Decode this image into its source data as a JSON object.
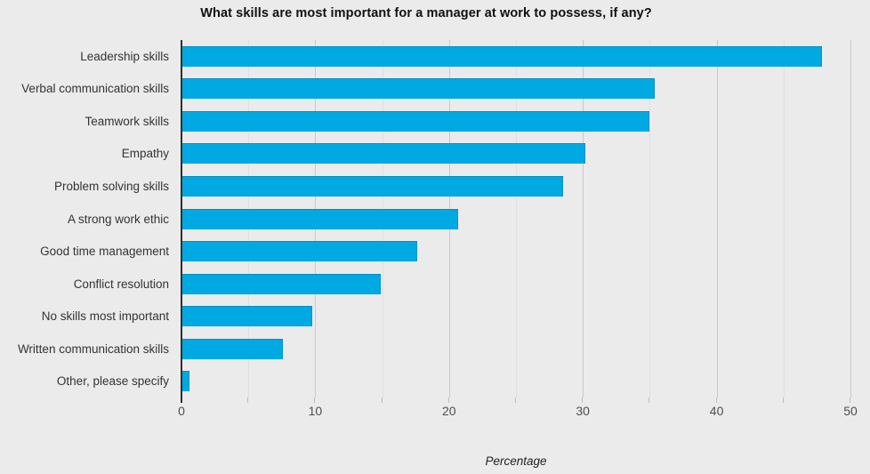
{
  "colors": {
    "background": "#ebebeb",
    "bar": "#00a9e1",
    "gridline_minor": "#dfdfdf",
    "gridline_major": "#c9c9c9",
    "axis_spine": "#2f2f2f",
    "tick": "#bdbdbd",
    "title_text": "#111111",
    "label_text": "#333333",
    "tick_label_text": "#4d4d4d"
  },
  "chart_data": {
    "type": "bar",
    "orientation": "horizontal",
    "title": "What skills are most important for a manager at work to possess, if any?",
    "xlabel": "Percentage",
    "ylabel": "",
    "xlim": [
      0,
      50
    ],
    "grid": true,
    "gridline_interval": 5,
    "tick_interval": 5,
    "x_tick_labels": [
      "0",
      "10",
      "20",
      "30",
      "40",
      "50"
    ],
    "x_tick_values": [
      0,
      10,
      20,
      30,
      40,
      50
    ],
    "categories": [
      "Leadership skills",
      "Verbal communication skills",
      "Teamwork skills",
      "Empathy",
      "Problem solving skills",
      "A strong work ethic",
      "Good time management",
      "Conflict resolution",
      "No skills most important",
      "Written communication skills",
      "Other, please specify"
    ],
    "values": [
      47.9,
      35.4,
      35.0,
      30.2,
      28.5,
      20.7,
      17.6,
      14.9,
      9.8,
      7.6,
      0.6
    ],
    "legend": null
  }
}
